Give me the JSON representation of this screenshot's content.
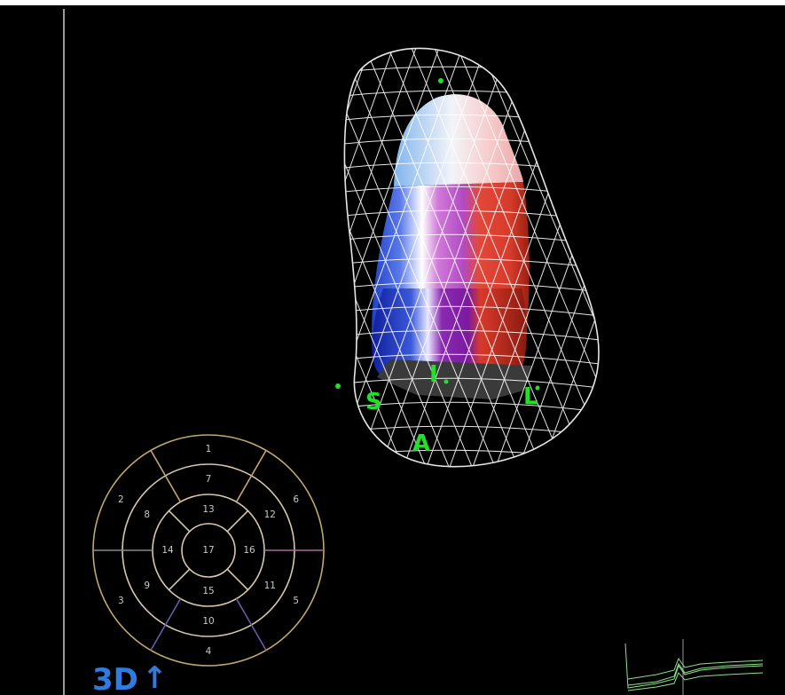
{
  "markers": {
    "septal": "S",
    "inferior": "I",
    "lateral": "L",
    "anterior": "A"
  },
  "bullseye": {
    "segments": [
      "1",
      "2",
      "3",
      "4",
      "5",
      "6",
      "7",
      "8",
      "9",
      "10",
      "11",
      "12",
      "13",
      "14",
      "15",
      "16",
      "17"
    ],
    "ring_colors": {
      "outer": "#bfa86a",
      "basal_anterior": "#c4a670",
      "lateral": "#9a5a8a",
      "inferior": "#6a5aa8",
      "septal": "#8a8a8a"
    }
  },
  "logo": {
    "text": "3D",
    "arrow": "↑",
    "color": "#2f7be0"
  },
  "colors": {
    "background": "#000000",
    "wireframe": "#ffffff",
    "marker": "#22e02a",
    "ecg": "#8fe08a"
  }
}
